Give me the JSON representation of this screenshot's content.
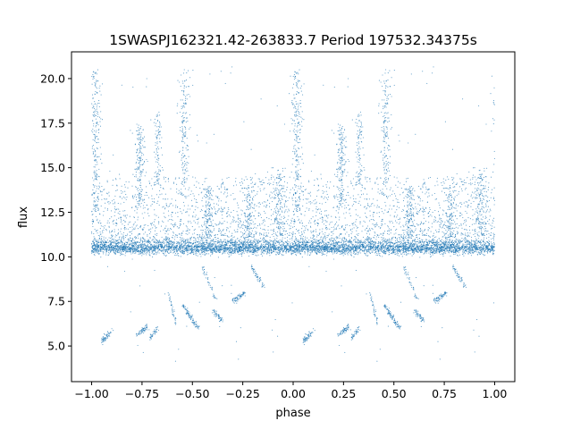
{
  "chart_data": {
    "type": "scatter",
    "title": "1SWASPJ162321.42-263833.7 Period 197532.34375s",
    "xlabel": "phase",
    "ylabel": "flux",
    "xlim": [
      -1.1,
      1.1
    ],
    "ylim": [
      3.0,
      21.5
    ],
    "grid": false,
    "legend": "none",
    "point_color": "#1f77b4",
    "xticks": [
      -1.0,
      -0.75,
      -0.5,
      -0.25,
      0.0,
      0.25,
      0.5,
      0.75,
      1.0
    ],
    "xtick_labels": [
      "−1.00",
      "−0.75",
      "−0.50",
      "−0.25",
      "0.00",
      "0.25",
      "0.50",
      "0.75",
      "1.00"
    ],
    "yticks": [
      5.0,
      7.5,
      10.0,
      12.5,
      15.0,
      17.5,
      20.0
    ],
    "ytick_labels": [
      "5.0",
      "7.5",
      "10.0",
      "12.5",
      "15.0",
      "17.5",
      "20.0"
    ],
    "series_description": "phase-folded light curve, mirrored for phase < 0 (phase p and p-1 show the same points)",
    "components": [
      {
        "kind": "baseline",
        "x_range": [
          0.0,
          1.0
        ],
        "y_center": 10.5,
        "y_spread": 0.25,
        "n": 2600
      },
      {
        "kind": "scatter_above",
        "x_range": [
          0.0,
          1.0
        ],
        "y_range": [
          10.8,
          14.5
        ],
        "n": 1500
      },
      {
        "kind": "cluster",
        "x_center": 0.02,
        "x_spread": 0.03,
        "y_range": [
          12.5,
          20.5
        ],
        "n": 220
      },
      {
        "kind": "cluster",
        "x_center": 0.24,
        "x_spread": 0.03,
        "y_range": [
          13.0,
          17.5
        ],
        "n": 160
      },
      {
        "kind": "cluster",
        "x_center": 0.33,
        "x_spread": 0.02,
        "y_range": [
          14.0,
          18.0
        ],
        "n": 90
      },
      {
        "kind": "cluster",
        "x_center": 0.46,
        "x_spread": 0.03,
        "y_range": [
          14.0,
          20.5
        ],
        "n": 160
      },
      {
        "kind": "cluster",
        "x_center": 0.58,
        "x_spread": 0.03,
        "y_range": [
          11.0,
          14.0
        ],
        "n": 120
      },
      {
        "kind": "cluster",
        "x_center": 0.78,
        "x_spread": 0.03,
        "y_range": [
          11.0,
          14.0
        ],
        "n": 120
      },
      {
        "kind": "cluster",
        "x_center": 0.93,
        "x_spread": 0.04,
        "y_range": [
          11.0,
          15.0
        ],
        "n": 150
      },
      {
        "kind": "trail",
        "x_range": [
          0.05,
          0.1
        ],
        "y_range": [
          5.3,
          5.8
        ],
        "n": 60
      },
      {
        "kind": "trail",
        "x_range": [
          0.22,
          0.28
        ],
        "y_range": [
          5.6,
          6.1
        ],
        "n": 60
      },
      {
        "kind": "trail",
        "x_range": [
          0.29,
          0.33
        ],
        "y_range": [
          5.4,
          6.0
        ],
        "n": 40
      },
      {
        "kind": "trail",
        "x_range": [
          0.38,
          0.42
        ],
        "y_range": [
          8.0,
          6.2
        ],
        "n": 40
      },
      {
        "kind": "trail",
        "x_range": [
          0.45,
          0.53
        ],
        "y_range": [
          7.3,
          6.0
        ],
        "n": 90
      },
      {
        "kind": "trail",
        "x_range": [
          0.6,
          0.65
        ],
        "y_range": [
          7.0,
          6.4
        ],
        "n": 50
      },
      {
        "kind": "trail",
        "x_range": [
          0.7,
          0.76
        ],
        "y_range": [
          7.5,
          8.0
        ],
        "n": 70
      },
      {
        "kind": "trail",
        "x_range": [
          0.55,
          0.62
        ],
        "y_range": [
          9.5,
          7.5
        ],
        "n": 40
      },
      {
        "kind": "trail",
        "x_range": [
          0.79,
          0.86
        ],
        "y_range": [
          9.5,
          8.2
        ],
        "n": 50
      },
      {
        "kind": "sparse",
        "x_range": [
          0.0,
          1.0
        ],
        "y_range": [
          4.0,
          20.7
        ],
        "n": 100
      }
    ]
  }
}
